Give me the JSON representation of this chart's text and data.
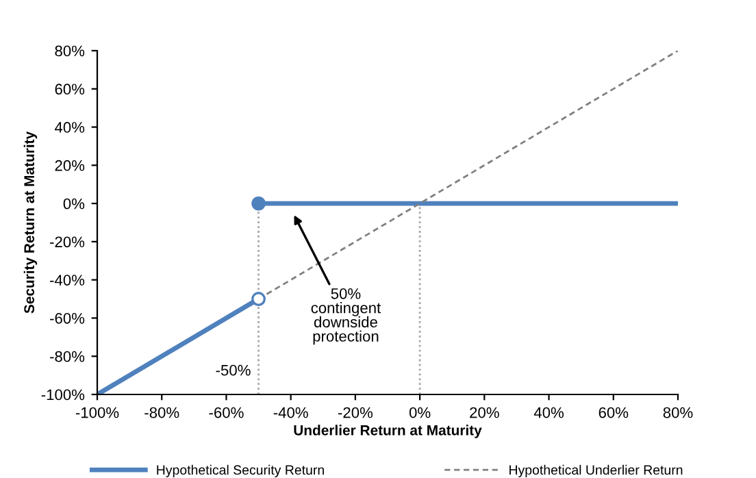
{
  "chart_data": {
    "type": "line",
    "xlabel": "Underlier Return at Maturity",
    "ylabel": "Security Return at Maturity",
    "xlim": [
      -100,
      80
    ],
    "ylim": [
      -100,
      80
    ],
    "xticks": [
      {
        "value": -100,
        "label": "-100%"
      },
      {
        "value": -80,
        "label": "-80%"
      },
      {
        "value": -60,
        "label": "-60%"
      },
      {
        "value": -40,
        "label": "-40%"
      },
      {
        "value": -20,
        "label": "-20%"
      },
      {
        "value": 0,
        "label": "0%"
      },
      {
        "value": 20,
        "label": "20%"
      },
      {
        "value": 40,
        "label": "40%"
      },
      {
        "value": 60,
        "label": "60%"
      },
      {
        "value": 80,
        "label": "80%"
      }
    ],
    "yticks": [
      {
        "value": -100,
        "label": "-100%"
      },
      {
        "value": -80,
        "label": "-80%"
      },
      {
        "value": -60,
        "label": "-60%"
      },
      {
        "value": -40,
        "label": "-40%"
      },
      {
        "value": -20,
        "label": "-20%"
      },
      {
        "value": 0,
        "label": "0%"
      },
      {
        "value": 20,
        "label": "20%"
      },
      {
        "value": 40,
        "label": "40%"
      },
      {
        "value": 60,
        "label": "60%"
      },
      {
        "value": 80,
        "label": "80%"
      }
    ],
    "grid": false,
    "legend": "bottom",
    "series": [
      {
        "name": "Hypothetical Security Return",
        "color": "#4f81bd",
        "x": [
          -100,
          -50
        ],
        "values": [
          -100,
          -50
        ],
        "line_style": "solid"
      },
      {
        "color": "#4f81bd",
        "x": [
          -50,
          80
        ],
        "values": [
          0,
          0
        ],
        "line_style": "solid"
      },
      {
        "name": "Hypothetical Underlier Return",
        "color": "#808080",
        "x": [
          -50,
          80
        ],
        "values": [
          -50,
          80
        ],
        "line_style": "dashed"
      },
      {
        "color": "#a6a6a6",
        "x": [
          -50,
          -50
        ],
        "values": [
          -100,
          0
        ],
        "line_style": "dotted"
      },
      {
        "color": "#a6a6a6",
        "x": [
          0,
          0
        ],
        "values": [
          -100,
          0
        ],
        "line_style": "dotted"
      },
      {
        "type": "scatter",
        "color": "#4f81bd",
        "colors": [
          "#4f81bd",
          "#ffffff"
        ],
        "x": [
          -50,
          -50
        ],
        "values": [
          0,
          -50
        ],
        "marker": "circle"
      }
    ],
    "annotations": [
      "50%\ncontingent\ndownside\nprotection",
      {
        "text": "-50%",
        "x": -50,
        "y": -88
      }
    ]
  }
}
